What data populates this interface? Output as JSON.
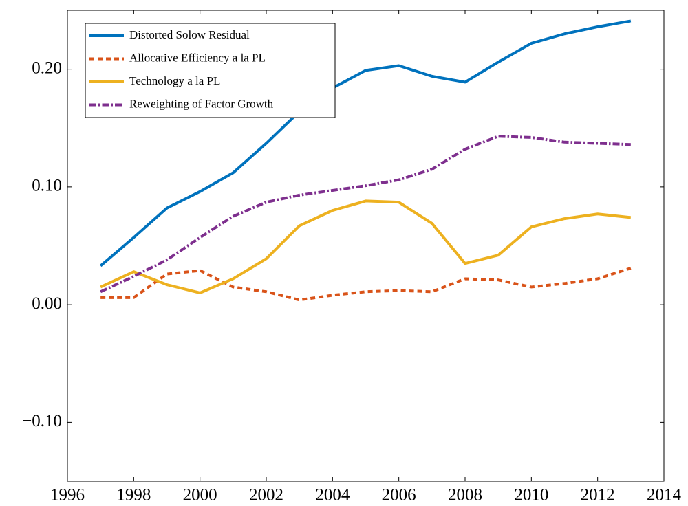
{
  "chart_data": {
    "type": "line",
    "x": [
      1997,
      1998,
      1999,
      2000,
      2001,
      2002,
      2003,
      2004,
      2005,
      2006,
      2007,
      2008,
      2009,
      2010,
      2011,
      2012,
      2013
    ],
    "series": [
      {
        "name": "Distorted Solow Residual",
        "color": "#0072bd",
        "dash": "solid",
        "values": [
          0.033,
          0.057,
          0.082,
          0.096,
          0.112,
          0.137,
          0.164,
          0.184,
          0.199,
          0.203,
          0.194,
          0.189,
          0.206,
          0.222,
          0.23,
          0.236,
          0.241
        ]
      },
      {
        "name": "Allocative Efficiency a la PL",
        "color": "#d95319",
        "dash": "dashed",
        "values": [
          0.006,
          0.006,
          0.026,
          0.029,
          0.015,
          0.011,
          0.004,
          0.008,
          0.011,
          0.012,
          0.011,
          0.022,
          0.021,
          0.015,
          0.018,
          0.022,
          0.031
        ]
      },
      {
        "name": "Technology a la PL",
        "color": "#edb120",
        "dash": "solid",
        "values": [
          0.015,
          0.028,
          0.017,
          0.01,
          0.022,
          0.039,
          0.067,
          0.08,
          0.088,
          0.087,
          0.069,
          0.035,
          0.042,
          0.066,
          0.073,
          0.077,
          0.074
        ]
      },
      {
        "name": "Reweighting of Factor Growth",
        "color": "#7e2f8e",
        "dash": "dashdot",
        "values": [
          0.011,
          0.024,
          0.038,
          0.057,
          0.075,
          0.087,
          0.093,
          0.097,
          0.101,
          0.106,
          0.115,
          0.132,
          0.143,
          0.142,
          0.138,
          0.137,
          0.136
        ]
      }
    ],
    "xlim": [
      1996,
      2014
    ],
    "xticks": [
      1996,
      1998,
      2000,
      2002,
      2004,
      2006,
      2008,
      2010,
      2012,
      2014
    ],
    "ylim": [
      -0.15,
      0.25
    ],
    "yticks": [
      {
        "value": -0.1,
        "label": "−0.10"
      },
      {
        "value": 0,
        "label": "0.00"
      },
      {
        "value": 0.1,
        "label": "0.10"
      },
      {
        "value": 0.2,
        "label": "0.20"
      }
    ],
    "legend": "upper left",
    "grid": false
  }
}
